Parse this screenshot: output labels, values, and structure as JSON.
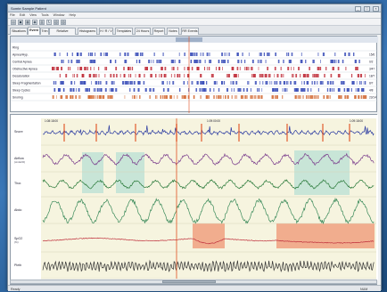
{
  "window": {
    "title": "Somte Sample Patient",
    "minimize_glyph": "_",
    "maximize_glyph": "□",
    "close_glyph": "×"
  },
  "menubar": {
    "items": [
      "File",
      "Edit",
      "View",
      "Tools",
      "Window",
      "Help"
    ]
  },
  "toolbar": {
    "buttons": [
      {
        "icon": "folder-icon",
        "glyph": "▤"
      },
      {
        "icon": "save-icon",
        "glyph": "▣"
      },
      {
        "icon": "print-icon",
        "glyph": "▦"
      },
      {
        "icon": "zoom-icon",
        "glyph": "◉"
      },
      {
        "icon": "grid-icon",
        "glyph": "▥"
      },
      {
        "icon": "refresh-icon",
        "glyph": "↻"
      },
      {
        "icon": "chart-icon",
        "glyph": "▧"
      },
      {
        "icon": "settings-icon",
        "glyph": "▨"
      }
    ]
  },
  "tabs": [
    {
      "label": "Situations",
      "active": false
    },
    {
      "label": "Event",
      "active": true
    },
    {
      "label": "Trim",
      "active": false
    },
    {
      "label": "Relative Summary",
      "active": false
    },
    {
      "label": "Histograms",
      "active": false
    },
    {
      "label": "H / R / V",
      "active": false
    },
    {
      "label": "Templates",
      "active": false
    },
    {
      "label": "24 Hours",
      "active": false
    },
    {
      "label": "Report",
      "active": false
    },
    {
      "label": "Notes",
      "active": false
    },
    {
      "label": "RR Events",
      "active": false
    }
  ],
  "overview": {
    "rows": [
      {
        "label": "Ring",
        "count": "",
        "color": "#8ca0c8"
      },
      {
        "label": "Apnea/Hyp.",
        "count": "15/6",
        "color": "#3b4fb8"
      },
      {
        "label": "Central Apnea",
        "count": "0/2",
        "color": "#3b4fb8"
      },
      {
        "label": "Obstructive Apnea",
        "count": "3/47",
        "color": "#c0303c"
      },
      {
        "label": "Desaturation",
        "count": "18/7",
        "color": "#c0303c"
      },
      {
        "label": "Sleep Fragmentation",
        "count": "8/7",
        "color": "#3b4fb8"
      },
      {
        "label": "Sleep Cycles",
        "count": "4/8",
        "color": "#3b4fb8"
      },
      {
        "label": "Snoring",
        "count": "23/14",
        "color": "#d4703c"
      }
    ],
    "accent_colors": [
      "#c0303c",
      "#3b4fb8",
      "#d4703c"
    ]
  },
  "main": {
    "time_labels": [
      "1:08:18:00",
      "1:09:00:00",
      "1:09:18:00"
    ],
    "channels": [
      {
        "label": "Snore",
        "sub": "",
        "color": "#2838a0"
      },
      {
        "label": "Airflow",
        "sub": "(cmH2O)",
        "color": "#7a3c8c"
      },
      {
        "label": "Thor.",
        "sub": "",
        "color": "#2a7a3a"
      },
      {
        "label": "Abdo",
        "sub": "",
        "color": "#3a8a5a"
      },
      {
        "label": "SpO2",
        "sub": "(%)",
        "color": "#c0303c"
      },
      {
        "label": "Pleth",
        "sub": "",
        "color": "#333333"
      }
    ],
    "event_colors": {
      "apnea_box": "#b8e0d4",
      "desat_box": "#f0a080",
      "marker_line": "#e05020"
    }
  },
  "statusbar": {
    "left": "Ready",
    "right": "NUM"
  }
}
